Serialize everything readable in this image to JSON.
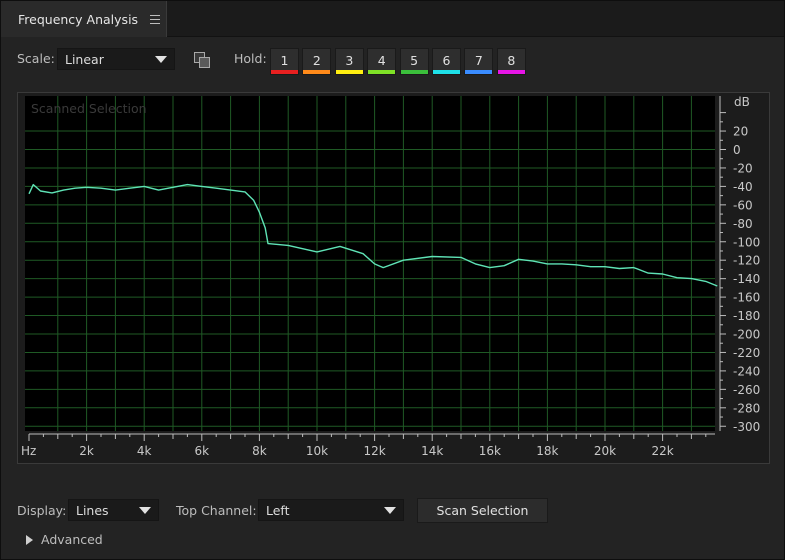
{
  "panel": {
    "title": "Frequency Analysis"
  },
  "scale": {
    "label": "Scale:",
    "value": "Linear"
  },
  "hold": {
    "label": "Hold:",
    "buttons": [
      {
        "label": "1",
        "color": "#e82020"
      },
      {
        "label": "2",
        "color": "#ff8a1a"
      },
      {
        "label": "3",
        "color": "#ffee11"
      },
      {
        "label": "4",
        "color": "#7fe126"
      },
      {
        "label": "5",
        "color": "#3bbf3b"
      },
      {
        "label": "6",
        "color": "#1ee0e8"
      },
      {
        "label": "7",
        "color": "#3a8cff"
      },
      {
        "label": "8",
        "color": "#e615e6"
      }
    ]
  },
  "graph": {
    "watermark": "Scanned Selection",
    "grid_color": "#1f5a25",
    "line_color": "#5fe3b6"
  },
  "chart_data": {
    "type": "line",
    "title": "",
    "xlabel": "Hz",
    "ylabel": "dB",
    "x_unit": "Hz",
    "x_ticks": [
      "2k",
      "4k",
      "6k",
      "8k",
      "10k",
      "12k",
      "14k",
      "16k",
      "18k",
      "20k",
      "22k"
    ],
    "x_tick_values": [
      2000,
      4000,
      6000,
      8000,
      10000,
      12000,
      14000,
      16000,
      18000,
      20000,
      22000
    ],
    "y_ticks": [
      "20",
      "0",
      "-20",
      "-40",
      "-60",
      "-80",
      "-100",
      "-120",
      "-140",
      "-160",
      "-180",
      "-200",
      "-220",
      "-240",
      "-260",
      "-280",
      "-300"
    ],
    "y_tick_values": [
      20,
      0,
      -20,
      -40,
      -60,
      -80,
      -100,
      -120,
      -140,
      -160,
      -180,
      -200,
      -220,
      -240,
      -260,
      -280,
      -300
    ],
    "xlim": [
      0,
      24000
    ],
    "ylim": [
      -310,
      50
    ],
    "grid": true,
    "series": [
      {
        "x": [
          0,
          150,
          400,
          800,
          1200,
          1600,
          2000,
          2500,
          3000,
          3500,
          4000,
          4500,
          5000,
          5500,
          6000,
          6500,
          7000,
          7500,
          7800,
          8000,
          8200,
          8300,
          9000,
          10000,
          10800,
          11200,
          11600,
          12000,
          12300,
          13000,
          14000,
          15000,
          15500,
          16000,
          16500,
          17000,
          17500,
          18000,
          18500,
          19000,
          19500,
          20000,
          20500,
          21000,
          21500,
          22000,
          22500,
          23000,
          23500,
          23900
        ],
        "y": [
          -48,
          -38,
          -45,
          -47,
          -44,
          -42,
          -41,
          -42,
          -44,
          -42,
          -40,
          -44,
          -41,
          -38,
          -40,
          -42,
          -44,
          -46,
          -55,
          -68,
          -85,
          -102,
          -104,
          -111,
          -105,
          -109,
          -113,
          -124,
          -128,
          -120,
          -116,
          -117,
          -124,
          -128,
          -126,
          -119,
          -121,
          -124,
          -124,
          -125,
          -127,
          -127,
          -129,
          -128,
          -134,
          -135,
          -139,
          -140,
          -143,
          -148
        ]
      }
    ]
  },
  "display": {
    "label": "Display:",
    "value": "Lines"
  },
  "top_channel": {
    "label": "Top Channel:",
    "value": "Left"
  },
  "scan_button": {
    "label": "Scan Selection"
  },
  "advanced": {
    "label": "Advanced"
  }
}
